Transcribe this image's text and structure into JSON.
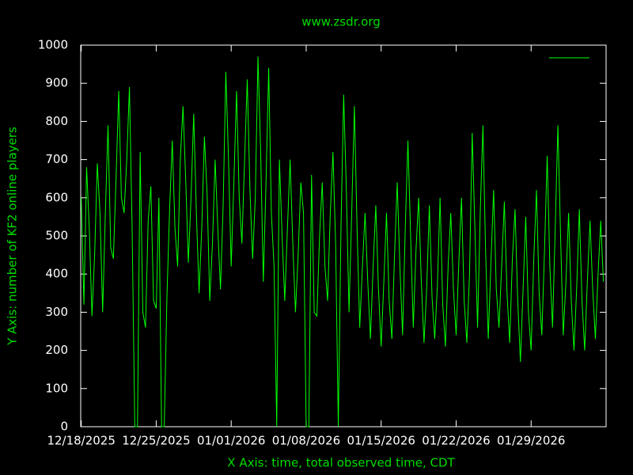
{
  "chart_data": {
    "type": "line",
    "title": "www.zsdr.org",
    "x_label": "X Axis: time, total observed time, CDT",
    "y_label": "Y Axis: number of KF2 online players",
    "xlim": [
      -0.05,
      49.0
    ],
    "xticks": [
      {
        "value": 0,
        "label": "12/18/2025"
      },
      {
        "value": 7,
        "label": "12/25/2025"
      },
      {
        "value": 14,
        "label": "01/01/2026"
      },
      {
        "value": 21,
        "label": "01/08/2026"
      },
      {
        "value": 28,
        "label": "01/15/2026"
      },
      {
        "value": 35,
        "label": "01/22/2026"
      },
      {
        "value": 42,
        "label": "01/29/2026"
      }
    ],
    "ylim": [
      0,
      1000
    ],
    "yticks": [
      0,
      100,
      200,
      300,
      400,
      500,
      600,
      700,
      800,
      900,
      1000
    ],
    "grid": false,
    "legend": "top-right",
    "x": [
      0,
      0.25,
      0.5,
      0.75,
      1,
      1.25,
      1.5,
      1.75,
      2,
      2.25,
      2.5,
      2.75,
      3,
      3.25,
      3.5,
      3.75,
      4,
      4.25,
      4.5,
      4.75,
      5,
      5.25,
      5.5,
      5.75,
      6,
      6.25,
      6.5,
      6.75,
      7,
      7.25,
      7.5,
      7.75,
      8,
      8.25,
      8.5,
      8.75,
      9,
      9.25,
      9.5,
      9.75,
      10,
      10.25,
      10.5,
      10.75,
      11,
      11.25,
      11.5,
      11.75,
      12,
      12.25,
      12.5,
      12.75,
      13,
      13.25,
      13.5,
      13.75,
      14,
      14.25,
      14.5,
      14.75,
      15,
      15.25,
      15.5,
      15.75,
      16,
      16.25,
      16.5,
      16.75,
      17,
      17.25,
      17.5,
      17.75,
      18,
      18.25,
      18.5,
      18.75,
      19,
      19.25,
      19.5,
      19.75,
      20,
      20.25,
      20.5,
      20.75,
      21,
      21.25,
      21.5,
      21.75,
      22,
      22.25,
      22.5,
      22.75,
      23,
      23.25,
      23.5,
      23.75,
      24,
      24.25,
      24.5,
      24.75,
      25,
      25.25,
      25.5,
      25.75,
      26,
      26.25,
      26.5,
      26.75,
      27,
      27.25,
      27.5,
      27.75,
      28,
      28.25,
      28.5,
      28.75,
      29,
      29.25,
      29.5,
      29.75,
      30,
      30.25,
      30.5,
      30.75,
      31,
      31.25,
      31.5,
      31.75,
      32,
      32.25,
      32.5,
      32.75,
      33,
      33.25,
      33.5,
      33.75,
      34,
      34.25,
      34.5,
      34.75,
      35,
      35.25,
      35.5,
      35.75,
      36,
      36.25,
      36.5,
      36.75,
      37,
      37.25,
      37.5,
      37.75,
      38,
      38.25,
      38.5,
      38.75,
      39,
      39.25,
      39.5,
      39.75,
      40,
      40.25,
      40.5,
      40.75,
      41,
      41.25,
      41.5,
      41.75,
      42,
      42.25,
      42.5,
      42.75,
      43,
      43.25,
      43.5,
      43.75,
      44,
      44.25,
      44.5,
      44.75,
      45,
      45.25,
      45.5,
      45.75,
      46,
      46.25,
      46.5,
      46.75,
      47,
      47.25,
      47.5,
      47.75,
      48,
      48.25,
      48.5,
      48.75
    ],
    "series": [
      {
        "color": "#00ff00",
        "values": [
          600,
          320,
          680,
          520,
          290,
          450,
          690,
          560,
          300,
          560,
          790,
          470,
          440,
          650,
          880,
          600,
          560,
          700,
          890,
          520,
          0,
          0,
          720,
          300,
          260,
          540,
          630,
          330,
          310,
          600,
          0,
          0,
          340,
          570,
          750,
          520,
          420,
          700,
          840,
          650,
          430,
          600,
          820,
          560,
          350,
          520,
          760,
          610,
          330,
          480,
          700,
          520,
          360,
          580,
          930,
          700,
          420,
          640,
          880,
          600,
          480,
          700,
          910,
          620,
          440,
          600,
          970,
          720,
          380,
          640,
          940,
          560,
          420,
          0,
          700,
          500,
          330,
          520,
          700,
          480,
          300,
          450,
          640,
          560,
          0,
          0,
          660,
          300,
          290,
          500,
          640,
          420,
          330,
          560,
          720,
          480,
          0,
          520,
          870,
          620,
          300,
          560,
          840,
          520,
          260,
          420,
          560,
          380,
          230,
          420,
          580,
          360,
          210,
          380,
          560,
          330,
          230,
          450,
          640,
          420,
          240,
          520,
          750,
          500,
          260,
          460,
          600,
          380,
          220,
          360,
          580,
          340,
          230,
          370,
          600,
          320,
          210,
          420,
          560,
          360,
          240,
          430,
          600,
          330,
          220,
          400,
          770,
          520,
          260,
          560,
          790,
          460,
          230,
          430,
          620,
          360,
          260,
          420,
          590,
          350,
          220,
          440,
          570,
          330,
          170,
          360,
          550,
          300,
          200,
          440,
          620,
          350,
          240,
          460,
          710,
          420,
          260,
          520,
          790,
          500,
          240,
          380,
          560,
          330,
          200,
          360,
          570,
          330,
          200,
          380,
          540,
          360,
          230,
          400,
          540,
          380
        ]
      }
    ]
  }
}
